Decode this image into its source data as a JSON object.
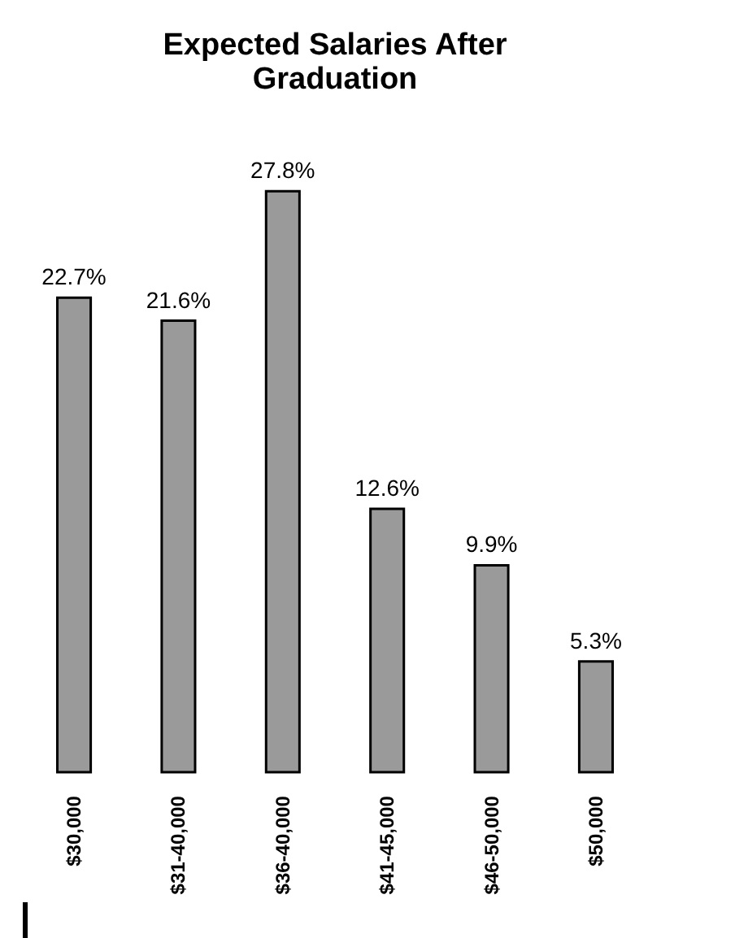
{
  "chart_data": {
    "type": "bar",
    "title": [
      "Expected Salaries After",
      "Graduation"
    ],
    "categories": [
      "$30,000",
      "$31-40,000",
      "$36-40,000",
      "$41-45,000",
      "$46-50,000",
      "$50,000"
    ],
    "values": [
      22.7,
      21.6,
      27.8,
      12.6,
      9.9,
      5.3
    ],
    "value_labels": [
      "22.7%",
      "21.6%",
      "27.8%",
      "12.6%",
      "9.9%",
      "5.3%"
    ],
    "color": "#9a9a9a"
  }
}
